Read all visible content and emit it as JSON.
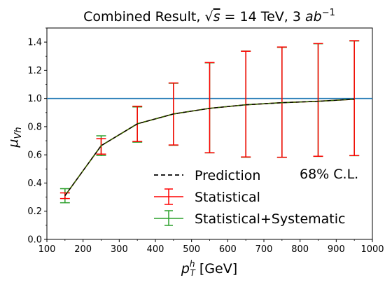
{
  "chart_data": {
    "type": "line",
    "title": "Combined Result, √s = 14 TeV, 3 ab⁻¹",
    "title_parts": {
      "prefix": "Combined Result, ",
      "sqrt": "√",
      "s": "s",
      "eq": " = 14 TeV, 3 ",
      "ab": "ab",
      "exp": "−1"
    },
    "xlabel_parts": {
      "p": "p",
      "sup": "h",
      "sub": "T",
      "rest": " [GeV]"
    },
    "ylabel_parts": {
      "mu": "μ",
      "sub": "Vh"
    },
    "xlim": [
      100,
      1000
    ],
    "ylim": [
      0.0,
      1.5
    ],
    "xticks": [
      100,
      200,
      300,
      400,
      500,
      600,
      700,
      800,
      900,
      1000
    ],
    "yticks": [
      0.0,
      0.2,
      0.4,
      0.6,
      0.8,
      1.0,
      1.2,
      1.4
    ],
    "reference_line": {
      "y": 1.0,
      "color": "#1f77b4"
    },
    "x": [
      150,
      250,
      350,
      450,
      550,
      650,
      750,
      850,
      950
    ],
    "prediction": [
      0.31,
      0.665,
      0.82,
      0.89,
      0.93,
      0.955,
      0.97,
      0.98,
      0.995
    ],
    "series": [
      {
        "name": "Statistical",
        "color": "#ff0000",
        "lower": [
          0.29,
          0.605,
          0.695,
          0.67,
          0.615,
          0.585,
          0.583,
          0.59,
          0.595
        ],
        "upper": [
          0.33,
          0.715,
          0.945,
          1.11,
          1.255,
          1.335,
          1.365,
          1.39,
          1.41
        ]
      },
      {
        "name": "Statistical+Systematic",
        "color": "#2ca02c",
        "lower": [
          0.26,
          0.595,
          0.69,
          0.668,
          0.614,
          0.583,
          0.582,
          0.589,
          0.594
        ],
        "upper": [
          0.36,
          0.735,
          0.94,
          1.108,
          1.253,
          1.336,
          1.363,
          1.388,
          1.408
        ]
      }
    ],
    "legend": {
      "placement": "lower-right",
      "entries": [
        "Prediction",
        "Statistical",
        "Statistical+Systematic"
      ]
    },
    "annotation": "68% C.L.",
    "colors": {
      "prediction": "#000000",
      "combined_line": "#2e6b00"
    },
    "grid": false
  }
}
